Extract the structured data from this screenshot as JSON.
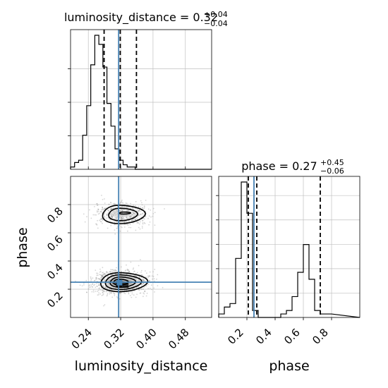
{
  "chart_data": {
    "type": "corner",
    "parameters": [
      "luminosity_distance",
      "phase"
    ],
    "colors": {
      "truth": "#4682b4",
      "hist": "#000000",
      "grid": "#c0c0c0",
      "scatter": "#8a8a8a"
    },
    "grid": true,
    "panels": [
      {
        "id": "luminosity_distance-marginal",
        "type": "histogram",
        "title_name": "luminosity_distance",
        "title_value": "0.32",
        "title_plus": "+0.04",
        "title_minus": "−0.04",
        "bins": {
          "start": 0.196,
          "width": 0.01
        },
        "counts": [
          1,
          3,
          4,
          15,
          28,
          46,
          59,
          55,
          45,
          29,
          19,
          9,
          4,
          2,
          1,
          1
        ],
        "xlim": [
          0.196,
          0.545
        ],
        "quantiles": [
          0.279,
          0.319,
          0.359
        ],
        "truth": 0.315
      },
      {
        "id": "phase-marginal",
        "type": "histogram",
        "title_name": "phase",
        "title_value": "0.27",
        "title_plus": "+0.45",
        "title_minus": "−0.06",
        "bins": {
          "start": 0.0,
          "width": 0.04
        },
        "counts": [
          1,
          3,
          4,
          17,
          39,
          30,
          2,
          0,
          0,
          0,
          0,
          1,
          2,
          6,
          13,
          21,
          11,
          2,
          1,
          1
        ],
        "xlim": [
          0.0,
          1.0
        ],
        "quantiles": [
          0.21,
          0.27,
          0.72
        ],
        "truth": 0.25
      },
      {
        "id": "joint",
        "type": "contour-2d",
        "xlabel": "luminosity_distance",
        "ylabel": "phase",
        "xlim": [
          0.196,
          0.545
        ],
        "ylim": [
          0.0,
          1.0
        ],
        "xticks": [
          "0.24",
          "0.32",
          "0.40",
          "0.48"
        ],
        "xtick_values": [
          0.24,
          0.32,
          0.4,
          0.48
        ],
        "yticks": [
          "0.2",
          "0.4",
          "0.6",
          "0.8"
        ],
        "ytick_values": [
          0.2,
          0.4,
          0.6,
          0.8
        ],
        "truth": [
          0.315,
          0.25
        ],
        "modes": [
          {
            "x": 0.322,
            "y": 0.25,
            "sx": 0.033,
            "sy": 0.045,
            "weight": 0.65,
            "peak_marker": [
              0.317,
              0.247
            ]
          },
          {
            "x": 0.322,
            "y": 0.73,
            "sx": 0.031,
            "sy": 0.045,
            "weight": 0.35
          }
        ]
      }
    ],
    "phase_xticks": [
      "0.2",
      "0.4",
      "0.6",
      "0.8"
    ],
    "phase_xtick_values": [
      0.2,
      0.4,
      0.6,
      0.8
    ]
  }
}
